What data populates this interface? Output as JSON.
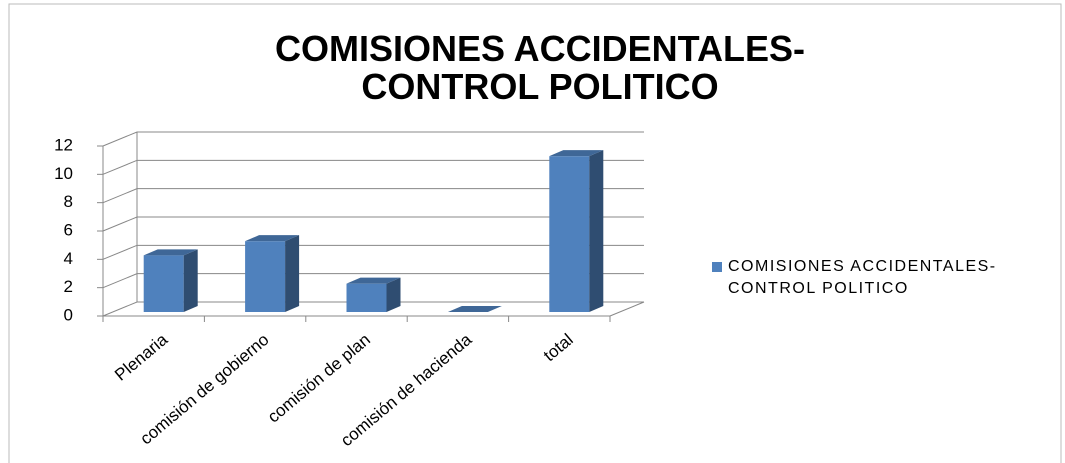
{
  "chart_data": {
    "type": "bar3d",
    "title": "COMISIONES ACCIDENTALES- CONTROL POLITICO",
    "categories": [
      "Plenaria",
      "comisión de gobierno",
      "comisión de plan",
      "comisión de hacienda",
      "total"
    ],
    "series": [
      {
        "name": "COMISIONES ACCIDENTALES- CONTROL POLITICO",
        "color": "#4f81bd",
        "values": [
          4,
          5,
          2,
          0,
          11
        ]
      }
    ],
    "ylim": [
      0,
      12
    ],
    "yticks": [
      0,
      2,
      4,
      6,
      8,
      10,
      12
    ],
    "grid": true,
    "legend": "right"
  }
}
